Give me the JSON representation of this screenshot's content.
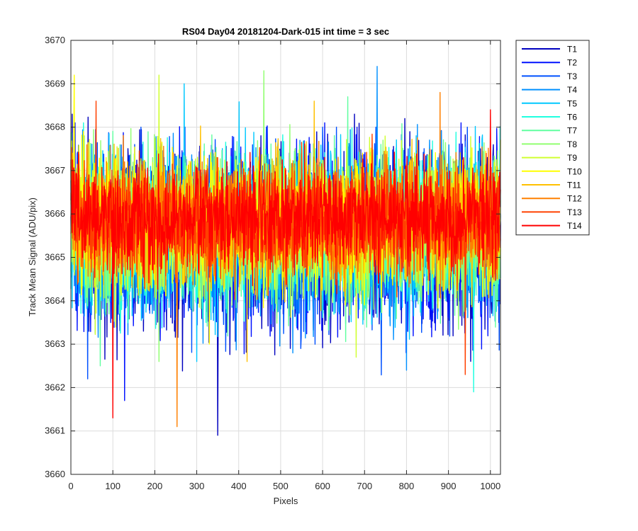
{
  "chart_data": {
    "type": "line",
    "title": "RS04 Day04 20181204-Dark-015 int time = 3 sec",
    "xlabel": "Pixels",
    "ylabel": "Track Mean Signal (ADU/pix)",
    "xlim": [
      0,
      1024
    ],
    "ylim": [
      3660,
      3670
    ],
    "xticks": [
      0,
      100,
      200,
      300,
      400,
      500,
      600,
      700,
      800,
      900,
      1000
    ],
    "yticks": [
      3660,
      3661,
      3662,
      3663,
      3664,
      3665,
      3666,
      3667,
      3668,
      3669,
      3670
    ],
    "grid": true,
    "legend_position": "outside-top-right",
    "series": [
      {
        "name": "T1",
        "color": "#0000bf",
        "mean": 3665.4,
        "min": 3660.9,
        "max": 3668.3,
        "min_at": 350,
        "max_at": 3
      },
      {
        "name": "T2",
        "color": "#0010ff",
        "mean": 3665.4,
        "min": 3661.7,
        "max": 3668.1,
        "min_at": 128,
        "max_at": 10
      },
      {
        "name": "T3",
        "color": "#0050ff",
        "mean": 3665.5,
        "min": 3662.2,
        "max": 3668.0,
        "min_at": 40,
        "max_at": 600
      },
      {
        "name": "T4",
        "color": "#0090ff",
        "mean": 3665.5,
        "min": 3662.4,
        "max": 3669.4,
        "min_at": 800,
        "max_at": 730
      },
      {
        "name": "T5",
        "color": "#00c8ff",
        "mean": 3665.6,
        "min": 3662.6,
        "max": 3669.0,
        "min_at": 300,
        "max_at": 270
      },
      {
        "name": "T6",
        "color": "#20ffe0",
        "mean": 3665.6,
        "min": 3661.9,
        "max": 3668.1,
        "min_at": 960,
        "max_at": 30
      },
      {
        "name": "T7",
        "color": "#60ffa0",
        "mean": 3665.6,
        "min": 3662.5,
        "max": 3668.7,
        "min_at": 70,
        "max_at": 660
      },
      {
        "name": "T8",
        "color": "#90ff70",
        "mean": 3665.7,
        "min": 3662.6,
        "max": 3669.3,
        "min_at": 210,
        "max_at": 460
      },
      {
        "name": "T9",
        "color": "#d0ff30",
        "mean": 3665.7,
        "min": 3662.7,
        "max": 3669.2,
        "min_at": 680,
        "max_at": 210
      },
      {
        "name": "T10",
        "color": "#ffff00",
        "mean": 3665.8,
        "min": 3663.0,
        "max": 3669.2,
        "min_at": 330,
        "max_at": 8
      },
      {
        "name": "T11",
        "color": "#ffc000",
        "mean": 3665.8,
        "min": 3662.6,
        "max": 3668.6,
        "min_at": 420,
        "max_at": 580
      },
      {
        "name": "T12",
        "color": "#ff8000",
        "mean": 3665.8,
        "min": 3661.1,
        "max": 3668.8,
        "min_at": 253,
        "max_at": 880
      },
      {
        "name": "T13",
        "color": "#ff4000",
        "mean": 3665.9,
        "min": 3662.3,
        "max": 3668.6,
        "min_at": 940,
        "max_at": 60
      },
      {
        "name": "T14",
        "color": "#ff0000",
        "mean": 3665.9,
        "min": 3661.3,
        "max": 3668.4,
        "min_at": 100,
        "max_at": 1000
      }
    ]
  }
}
